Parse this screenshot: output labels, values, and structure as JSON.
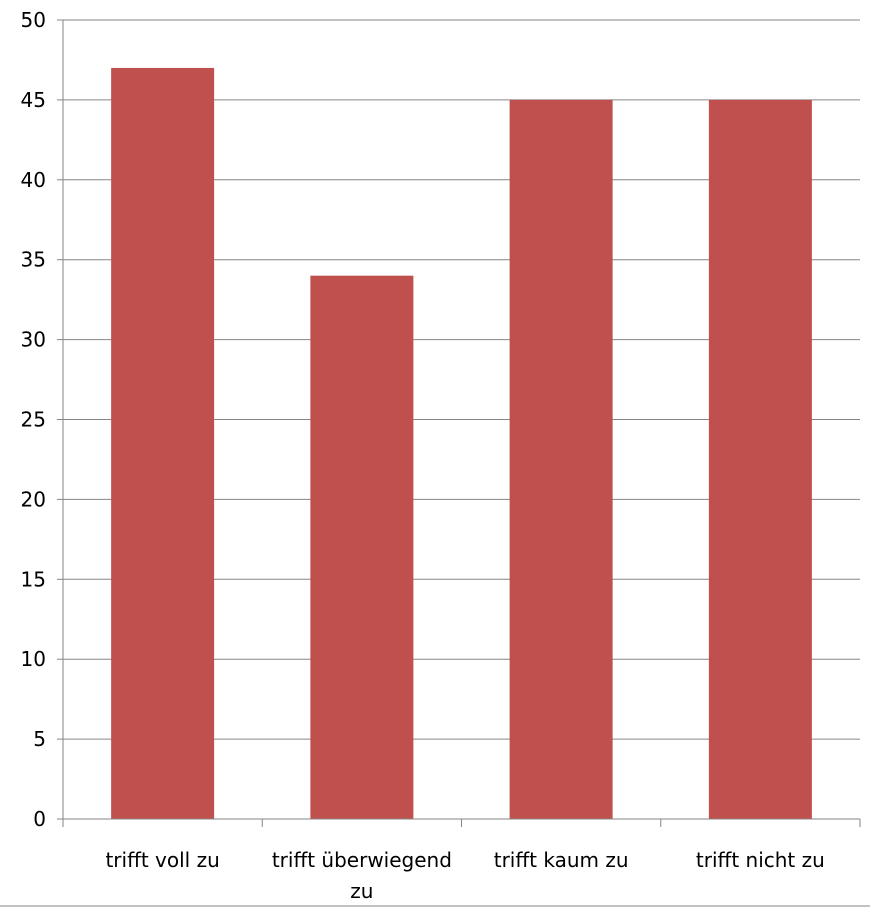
{
  "chart_data": {
    "type": "bar",
    "title": "",
    "xlabel": "",
    "ylabel": "",
    "categories": [
      "trifft voll zu",
      "trifft überwiegend zu",
      "trifft kaum zu",
      "trifft nicht zu"
    ],
    "category_label_lines": [
      [
        "trifft voll zu"
      ],
      [
        "trifft überwiegend",
        "zu"
      ],
      [
        "trifft kaum zu"
      ],
      [
        "trifft nicht zu"
      ]
    ],
    "values": [
      47,
      34,
      45,
      45
    ],
    "ylim": [
      0,
      50
    ],
    "yticks": [
      "0",
      "5",
      "10",
      "15",
      "20",
      "25",
      "30",
      "35",
      "40",
      "45",
      "50"
    ],
    "grid": true,
    "legend": "none",
    "colors": {
      "bar": "#C0504D",
      "grid": "#868686",
      "axis": "#868686",
      "text": "#000000"
    }
  }
}
